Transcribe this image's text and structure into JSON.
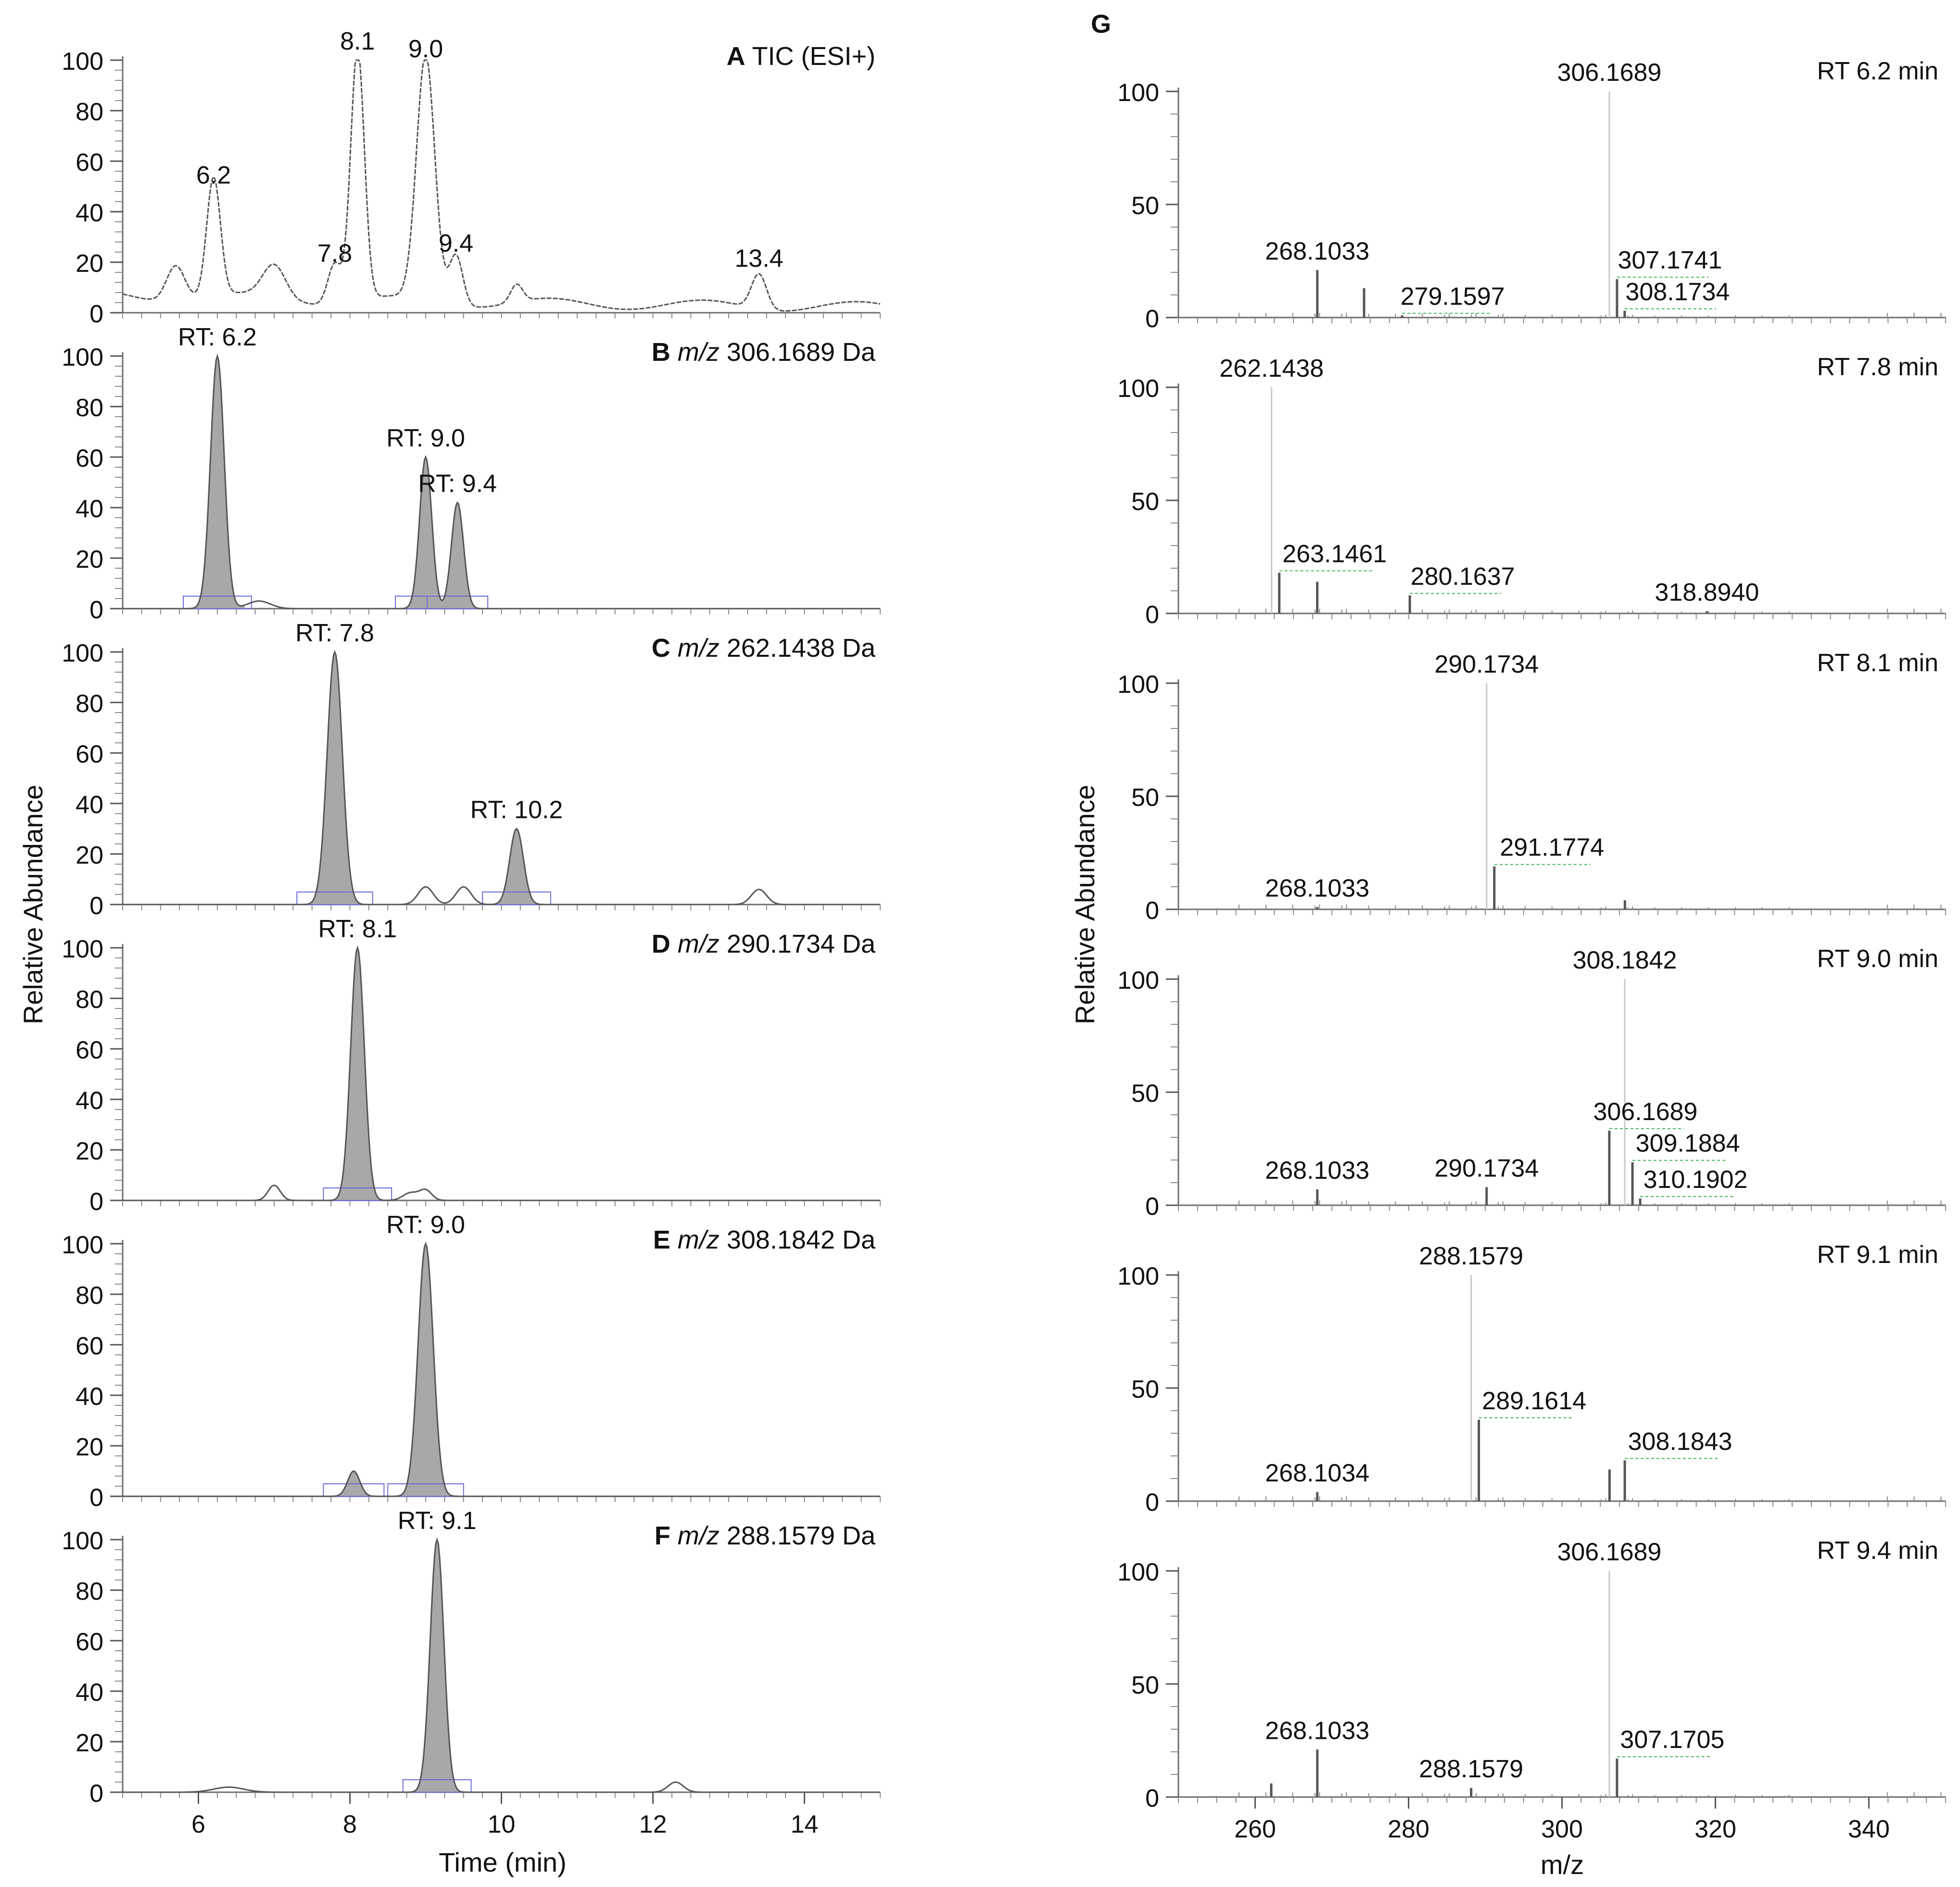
{
  "figure": {
    "left_ylabel": "Relative Abundance",
    "left_xlabel": "Time (min)",
    "right_ylabel": "Relative Abundance",
    "right_xlabel": "m/z",
    "panel_g_letter": "G"
  },
  "chart_data": [
    {
      "type": "line",
      "panel": "A",
      "title_letter": "A",
      "title_pre": " TIC (ESI+)",
      "title_mz": "",
      "title_post": "",
      "x_range": [
        5,
        15
      ],
      "ylim": [
        0,
        100
      ],
      "yticks": [
        0,
        20,
        40,
        60,
        80,
        100
      ],
      "peaks": [
        {
          "rt": 6.2,
          "h": 47,
          "w": 0.09
        },
        {
          "rt": 7.8,
          "h": 16,
          "w": 0.09
        },
        {
          "rt": 8.1,
          "h": 100,
          "w": 0.09
        },
        {
          "rt": 9.0,
          "h": 97,
          "w": 0.12
        },
        {
          "rt": 9.4,
          "h": 20,
          "w": 0.09
        },
        {
          "rt": 13.4,
          "h": 14,
          "w": 0.1
        },
        {
          "rt": 10.2,
          "h": 7,
          "w": 0.08
        },
        {
          "rt": 5.7,
          "h": 14,
          "w": 0.12
        },
        {
          "rt": 7.0,
          "h": 13,
          "w": 0.15
        }
      ],
      "baseline": 7,
      "filled": false,
      "peak_labels": [
        {
          "rt": 6.2,
          "h": 47,
          "text": "6.2"
        },
        {
          "rt": 7.8,
          "h": 16,
          "text": "7.8"
        },
        {
          "rt": 8.1,
          "h": 100,
          "text": "8.1"
        },
        {
          "rt": 9.0,
          "h": 97,
          "text": "9.0"
        },
        {
          "rt": 9.4,
          "h": 20,
          "text": "9.4"
        },
        {
          "rt": 13.4,
          "h": 14,
          "text": "13.4"
        }
      ],
      "xticks": []
    },
    {
      "type": "line",
      "panel": "B",
      "title_letter": "B",
      "title_pre": " ",
      "title_mz": "m/z",
      "title_post": " 306.1689 Da",
      "x_range": [
        5,
        15
      ],
      "ylim": [
        0,
        100
      ],
      "yticks": [
        0,
        20,
        40,
        60,
        80,
        100
      ],
      "peaks": [
        {
          "rt": 6.25,
          "h": 100,
          "w": 0.09
        },
        {
          "rt": 9.0,
          "h": 60,
          "w": 0.08
        },
        {
          "rt": 9.42,
          "h": 42,
          "w": 0.08
        },
        {
          "rt": 6.8,
          "h": 3,
          "w": 0.15
        }
      ],
      "baseline": 0,
      "filled": true,
      "peak_labels": [
        {
          "rt": 6.25,
          "h": 100,
          "text": "RT: 6.2"
        },
        {
          "rt": 9.0,
          "h": 60,
          "text": "RT: 9.0"
        },
        {
          "rt": 9.42,
          "h": 42,
          "text": "RT: 9.4"
        }
      ],
      "xticks": []
    },
    {
      "type": "line",
      "panel": "C",
      "title_letter": "C",
      "title_pre": " ",
      "title_mz": "m/z",
      "title_post": " 262.1438 Da",
      "x_range": [
        5,
        15
      ],
      "ylim": [
        0,
        100
      ],
      "yticks": [
        0,
        20,
        40,
        60,
        80,
        100
      ],
      "peaks": [
        {
          "rt": 7.8,
          "h": 100,
          "w": 0.1
        },
        {
          "rt": 10.2,
          "h": 30,
          "w": 0.09
        },
        {
          "rt": 9.0,
          "h": 7,
          "w": 0.1
        },
        {
          "rt": 9.5,
          "h": 7,
          "w": 0.1
        },
        {
          "rt": 13.4,
          "h": 6,
          "w": 0.1
        }
      ],
      "baseline": 0,
      "filled": true,
      "peak_labels": [
        {
          "rt": 7.8,
          "h": 100,
          "text": "RT: 7.8"
        },
        {
          "rt": 10.2,
          "h": 30,
          "text": "RT: 10.2"
        }
      ],
      "xticks": []
    },
    {
      "type": "line",
      "panel": "D",
      "title_letter": "D",
      "title_pre": " ",
      "title_mz": "m/z",
      "title_post": " 290.1734 Da",
      "x_range": [
        5,
        15
      ],
      "ylim": [
        0,
        100
      ],
      "yticks": [
        0,
        20,
        40,
        60,
        80,
        100
      ],
      "peaks": [
        {
          "rt": 8.1,
          "h": 100,
          "w": 0.09
        },
        {
          "rt": 7.0,
          "h": 6,
          "w": 0.08
        },
        {
          "rt": 8.8,
          "h": 3,
          "w": 0.1
        },
        {
          "rt": 9.0,
          "h": 4,
          "w": 0.08
        }
      ],
      "baseline": 0,
      "filled": true,
      "peak_labels": [
        {
          "rt": 8.1,
          "h": 100,
          "text": "RT: 8.1"
        }
      ],
      "xticks": []
    },
    {
      "type": "line",
      "panel": "E",
      "title_letter": "E",
      "title_pre": " ",
      "title_mz": "m/z",
      "title_post": " 308.1842 Da",
      "x_range": [
        5,
        15
      ],
      "ylim": [
        0,
        100
      ],
      "yticks": [
        0,
        20,
        40,
        60,
        80,
        100
      ],
      "peaks": [
        {
          "rt": 9.0,
          "h": 100,
          "w": 0.1
        },
        {
          "rt": 8.05,
          "h": 10,
          "w": 0.08
        }
      ],
      "baseline": 0,
      "filled": true,
      "peak_labels": [
        {
          "rt": 9.0,
          "h": 100,
          "text": "RT: 9.0"
        }
      ],
      "xticks": []
    },
    {
      "type": "line",
      "panel": "F",
      "title_letter": "F",
      "title_pre": " ",
      "title_mz": "m/z",
      "title_post": " 288.1579 Da",
      "x_range": [
        5,
        15
      ],
      "ylim": [
        0,
        100
      ],
      "yticks": [
        0,
        20,
        40,
        60,
        80,
        100
      ],
      "peaks": [
        {
          "rt": 9.15,
          "h": 100,
          "w": 0.09
        },
        {
          "rt": 6.4,
          "h": 2,
          "w": 0.2
        },
        {
          "rt": 12.3,
          "h": 4,
          "w": 0.1
        }
      ],
      "baseline": 0,
      "filled": true,
      "peak_labels": [
        {
          "rt": 9.15,
          "h": 100,
          "text": "RT: 9.1"
        }
      ],
      "xticks": [
        6,
        8,
        10,
        12,
        14
      ]
    },
    {
      "type": "bar",
      "panel": "G1",
      "rt_label": "RT 6.2 min",
      "x_range": [
        250,
        350
      ],
      "ylim": [
        0,
        100
      ],
      "yticks": [
        0,
        50,
        100
      ],
      "bars": [
        {
          "mz": 268.1033,
          "h": 21
        },
        {
          "mz": 274.2,
          "h": 13
        },
        {
          "mz": 279.1597,
          "h": 1
        },
        {
          "mz": 306.1689,
          "h": 100
        },
        {
          "mz": 307.1741,
          "h": 17
        },
        {
          "mz": 308.1734,
          "h": 3
        }
      ],
      "labels": [
        {
          "mz": 268.1033,
          "h": 21,
          "text": "268.1033",
          "dx": 0
        },
        {
          "mz": 279.1597,
          "h": 1,
          "text": "279.1597",
          "dx": 10
        },
        {
          "mz": 306.1689,
          "h": 100,
          "text": "306.1689",
          "dx": 0
        },
        {
          "mz": 307.1741,
          "h": 17,
          "text": "307.1741",
          "dx": 15
        },
        {
          "mz": 308.1734,
          "h": 3,
          "text": "308.1734",
          "dx": 15
        }
      ],
      "xticks": []
    },
    {
      "type": "bar",
      "panel": "G2",
      "rt_label": "RT 7.8 min",
      "x_range": [
        250,
        350
      ],
      "ylim": [
        0,
        100
      ],
      "yticks": [
        0,
        50,
        100
      ],
      "bars": [
        {
          "mz": 262.1438,
          "h": 100
        },
        {
          "mz": 263.1461,
          "h": 18
        },
        {
          "mz": 268.1,
          "h": 14
        },
        {
          "mz": 280.1637,
          "h": 8
        },
        {
          "mz": 318.894,
          "h": 1
        }
      ],
      "labels": [
        {
          "mz": 262.1438,
          "h": 100,
          "text": "262.1438",
          "dx": 0
        },
        {
          "mz": 263.1461,
          "h": 18,
          "text": "263.1461",
          "dx": 20
        },
        {
          "mz": 280.1637,
          "h": 8,
          "text": "280.1637",
          "dx": 15
        },
        {
          "mz": 318.894,
          "h": 1,
          "text": "318.8940",
          "dx": 0
        }
      ],
      "xticks": []
    },
    {
      "type": "bar",
      "panel": "G3",
      "rt_label": "RT 8.1 min",
      "x_range": [
        250,
        350
      ],
      "ylim": [
        0,
        100
      ],
      "yticks": [
        0,
        50,
        100
      ],
      "bars": [
        {
          "mz": 268.1033,
          "h": 1
        },
        {
          "mz": 290.1734,
          "h": 100
        },
        {
          "mz": 291.1774,
          "h": 19
        },
        {
          "mz": 308.2,
          "h": 4
        }
      ],
      "labels": [
        {
          "mz": 268.1033,
          "h": 1,
          "text": "268.1033",
          "dx": 0
        },
        {
          "mz": 290.1734,
          "h": 100,
          "text": "290.1734",
          "dx": 0
        },
        {
          "mz": 291.1774,
          "h": 19,
          "text": "291.1774",
          "dx": 25
        }
      ],
      "xticks": []
    },
    {
      "type": "bar",
      "panel": "G4",
      "rt_label": "RT 9.0 min",
      "x_range": [
        250,
        350
      ],
      "ylim": [
        0,
        100
      ],
      "yticks": [
        0,
        50,
        100
      ],
      "bars": [
        {
          "mz": 268.1033,
          "h": 7
        },
        {
          "mz": 290.1734,
          "h": 8
        },
        {
          "mz": 306.1689,
          "h": 33
        },
        {
          "mz": 308.1842,
          "h": 100
        },
        {
          "mz": 309.1884,
          "h": 19
        },
        {
          "mz": 310.1902,
          "h": 3
        }
      ],
      "labels": [
        {
          "mz": 268.1033,
          "h": 7,
          "text": "268.1033",
          "dx": 0
        },
        {
          "mz": 290.1734,
          "h": 8,
          "text": "290.1734",
          "dx": 0
        },
        {
          "mz": 306.1689,
          "h": 33,
          "text": "306.1689",
          "dx": -20
        },
        {
          "mz": 308.1842,
          "h": 100,
          "text": "308.1842",
          "dx": 0
        },
        {
          "mz": 309.1884,
          "h": 19,
          "text": "309.1884",
          "dx": 20
        },
        {
          "mz": 310.1902,
          "h": 3,
          "text": "310.1902",
          "dx": 20
        }
      ],
      "xticks": []
    },
    {
      "type": "bar",
      "panel": "G5",
      "rt_label": "RT 9.1 min",
      "x_range": [
        250,
        350
      ],
      "ylim": [
        0,
        100
      ],
      "yticks": [
        0,
        50,
        100
      ],
      "bars": [
        {
          "mz": 268.1034,
          "h": 4
        },
        {
          "mz": 288.1579,
          "h": 100
        },
        {
          "mz": 289.1614,
          "h": 36
        },
        {
          "mz": 306.2,
          "h": 14
        },
        {
          "mz": 308.1843,
          "h": 18
        }
      ],
      "labels": [
        {
          "mz": 268.1034,
          "h": 4,
          "text": "268.1034",
          "dx": 0
        },
        {
          "mz": 288.1579,
          "h": 100,
          "text": "288.1579",
          "dx": 0
        },
        {
          "mz": 289.1614,
          "h": 36,
          "text": "289.1614",
          "dx": 20
        },
        {
          "mz": 308.1843,
          "h": 18,
          "text": "308.1843",
          "dx": 20
        }
      ],
      "xticks": []
    },
    {
      "type": "bar",
      "panel": "G6",
      "rt_label": "RT 9.4 min",
      "x_range": [
        250,
        350
      ],
      "ylim": [
        0,
        100
      ],
      "yticks": [
        0,
        50,
        100
      ],
      "bars": [
        {
          "mz": 262.1,
          "h": 6
        },
        {
          "mz": 268.1033,
          "h": 21
        },
        {
          "mz": 288.1579,
          "h": 4
        },
        {
          "mz": 306.1689,
          "h": 100
        },
        {
          "mz": 307.1705,
          "h": 17
        }
      ],
      "labels": [
        {
          "mz": 268.1033,
          "h": 21,
          "text": "268.1033",
          "dx": 0
        },
        {
          "mz": 288.1579,
          "h": 4,
          "text": "288.1579",
          "dx": 0
        },
        {
          "mz": 306.1689,
          "h": 100,
          "text": "306.1689",
          "dx": 0
        },
        {
          "mz": 307.1705,
          "h": 17,
          "text": "307.1705",
          "dx": 20
        }
      ],
      "xticks": [
        260,
        280,
        300,
        320,
        340
      ]
    }
  ]
}
